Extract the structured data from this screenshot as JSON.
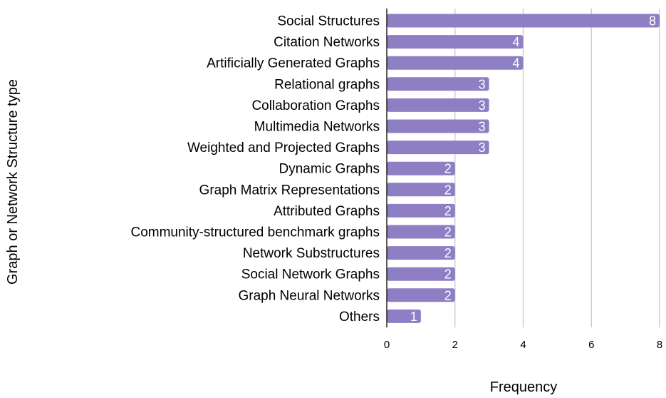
{
  "chart_data": {
    "type": "bar",
    "orientation": "horizontal",
    "categories": [
      "Social Structures",
      "Citation Networks",
      "Artificially Generated Graphs",
      "Relational graphs",
      "Collaboration Graphs",
      "Multimedia Networks",
      "Weighted and Projected Graphs",
      "Dynamic Graphs",
      "Graph Matrix Representations",
      "Attributed Graphs",
      "Community-structured benchmark graphs",
      "Network Substructures",
      "Social Network Graphs",
      "Graph Neural Networks",
      "Others"
    ],
    "values": [
      8,
      4,
      4,
      3,
      3,
      3,
      3,
      2,
      2,
      2,
      2,
      2,
      2,
      2,
      1
    ],
    "data_labels": [
      "8",
      "4",
      "4",
      "3",
      "3",
      "3",
      "3",
      "2",
      "2",
      "2",
      "2",
      "2",
      "2",
      "2",
      "1"
    ],
    "xlabel": "Frequency",
    "ylabel": "Graph or Network Structure type",
    "xlim": [
      0,
      8
    ],
    "xticks": [
      0,
      2,
      4,
      6,
      8
    ],
    "xtick_labels": [
      "0",
      "2",
      "4",
      "6",
      "8"
    ],
    "grid": "vertical",
    "legend": "none",
    "colors": {
      "bar": "#8e7fc4",
      "grid": "#c8c8c8",
      "axis": "#000000",
      "data_label": "#ffffff"
    }
  }
}
